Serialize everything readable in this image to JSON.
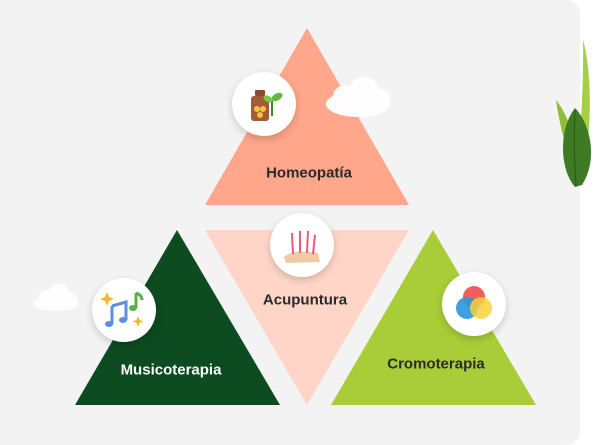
{
  "therapies": {
    "homeopatia": {
      "label": "Homeopatía",
      "color": "#ffa68b",
      "text_color": "#2b2b2b",
      "icon": "homeopathy-bottle-plant-icon"
    },
    "acupuntura": {
      "label": "Acupuntura",
      "color": "#ffd5c8",
      "text_color": "#2b2b2b",
      "icon": "acupuncture-needles-icon"
    },
    "musicoterapia": {
      "label": "Musicoterapia",
      "color": "#0d4b21",
      "text_color": "#ffffff",
      "icon": "music-notes-icon"
    },
    "cromoterapia": {
      "label": "Cromoterapia",
      "color": "#a9cd38",
      "text_color": "#2b2b2b",
      "icon": "color-circles-icon"
    }
  },
  "decorations": {
    "cloud_color": "#ffffff",
    "leaf_color": "#4a8a2a",
    "panel_color": "#f3f3f3"
  }
}
